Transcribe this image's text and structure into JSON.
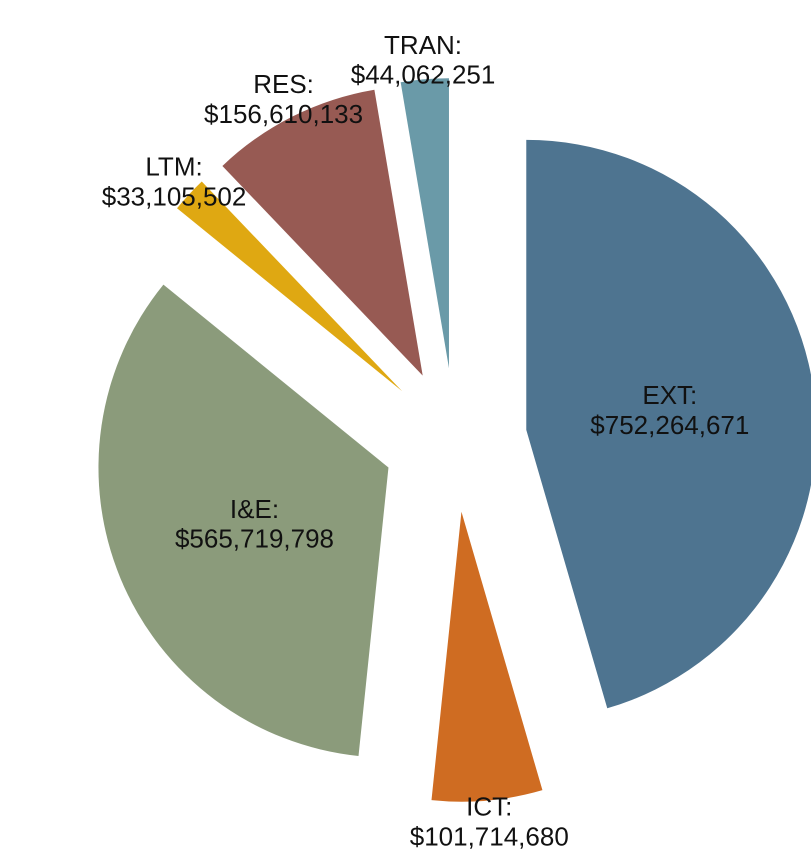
{
  "chart_data": {
    "type": "pie",
    "categories": [
      "EXT:",
      "ICT:",
      "I&E:",
      "LTM:",
      "RES:",
      "TRAN:"
    ],
    "values": [
      752264671,
      101714680,
      565719798,
      33105502,
      156610133,
      44062251
    ],
    "value_labels": [
      "$752,264,671",
      "$101,714,680",
      "$565,719,798",
      "$33,105,502",
      "$156,610,133",
      "$44,062,251"
    ],
    "colors": [
      "#4e7490",
      "#cf6c22",
      "#8b9b7b",
      "#dfa812",
      "#975a53",
      "#6a9aa8"
    ]
  }
}
